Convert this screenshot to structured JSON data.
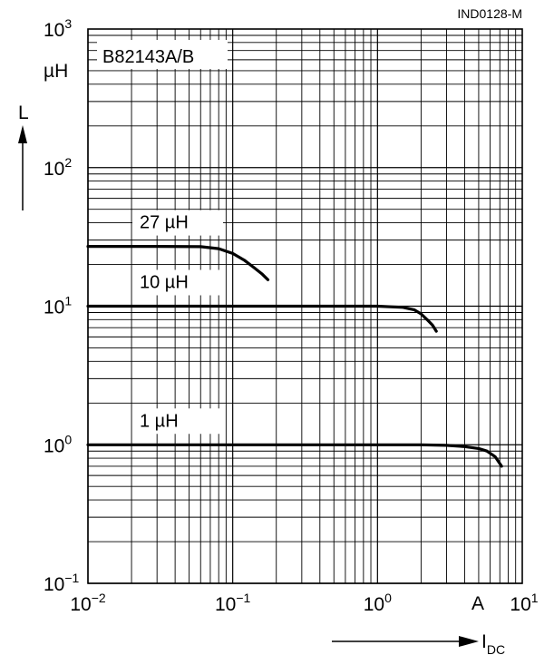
{
  "chart_data": {
    "type": "line",
    "title": "B82143A/B",
    "figure_id": "IND0128-M",
    "x_scale": "log",
    "y_scale": "log",
    "xlim": [
      0.01,
      10
    ],
    "ylim": [
      0.1,
      1000
    ],
    "grid": true,
    "xlabel": {
      "symbol": "I",
      "subscript": "DC",
      "unit": "A"
    },
    "ylabel": {
      "symbol": "L",
      "unit": "µH"
    },
    "x_ticks": [
      {
        "base": "10",
        "exp": "−2"
      },
      {
        "base": "10",
        "exp": "−1"
      },
      {
        "base": "10",
        "exp": "0"
      },
      {
        "base": "10",
        "exp": "1"
      }
    ],
    "y_ticks": [
      {
        "base": "10",
        "exp": "−1"
      },
      {
        "base": "10",
        "exp": "0"
      },
      {
        "base": "10",
        "exp": "1"
      },
      {
        "base": "10",
        "exp": "2"
      },
      {
        "base": "10",
        "exp": "3"
      }
    ],
    "series": [
      {
        "name": "27 µH",
        "x": [
          0.01,
          0.03,
          0.06,
          0.08,
          0.1,
          0.12,
          0.14,
          0.16,
          0.175
        ],
        "y": [
          27,
          27,
          26.9,
          26,
          24,
          21.5,
          19,
          17,
          15.5
        ]
      },
      {
        "name": "10 µH",
        "x": [
          0.01,
          0.1,
          1,
          1.5,
          1.8,
          2.0,
          2.2,
          2.4,
          2.55
        ],
        "y": [
          10,
          10,
          10,
          9.8,
          9.4,
          8.8,
          8.0,
          7.3,
          6.6
        ]
      },
      {
        "name": "1 µH",
        "x": [
          0.01,
          0.1,
          1,
          2,
          3,
          4,
          5,
          5.7,
          6.5,
          7.2
        ],
        "y": [
          1,
          1,
          1,
          1,
          0.99,
          0.97,
          0.94,
          0.9,
          0.82,
          0.7
        ]
      }
    ]
  }
}
